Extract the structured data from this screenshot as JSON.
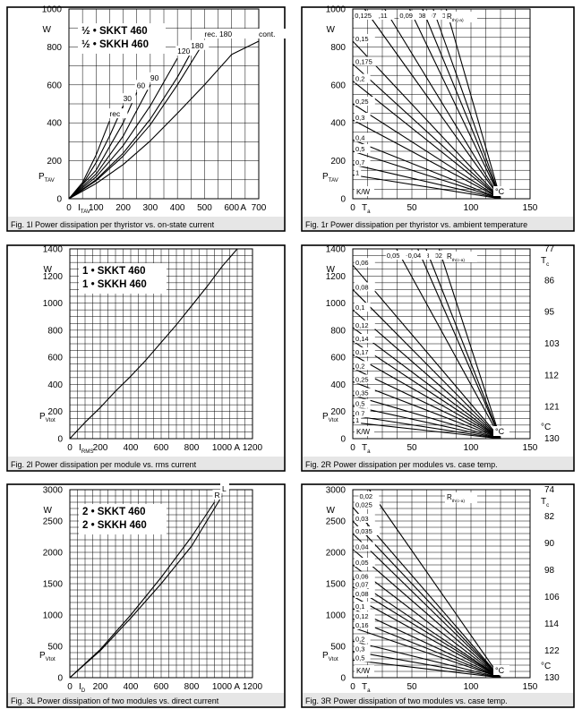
{
  "panels": [
    {
      "caption": "Fig. 1l Power dissipation per thyristor vs. on-state current",
      "device_labels": [
        "½ • SKKT 460",
        "½ • SKKH 460"
      ],
      "y_unit": "W",
      "y_symbol": "P",
      "y_subscript": "TAV",
      "x_symbol": "I",
      "x_subscript": "TAV",
      "x_unit": "A",
      "chart_data": {
        "type": "line",
        "xlim": [
          0,
          700
        ],
        "ylim": [
          0,
          1000
        ],
        "x_ticks": [
          0,
          100,
          200,
          300,
          400,
          500,
          600,
          700
        ],
        "y_ticks": [
          0,
          200,
          400,
          600,
          800,
          1000
        ],
        "grid": true,
        "series": [
          {
            "name": "rec",
            "x": [
              0,
              50,
              100,
              150
            ],
            "y": [
              0,
              85,
              230,
              410
            ]
          },
          {
            "name": "30",
            "x": [
              0,
              50,
              100,
              150,
              200
            ],
            "y": [
              0,
              75,
              190,
              330,
              490
            ]
          },
          {
            "name": "60",
            "x": [
              0,
              100,
              200,
              250
            ],
            "y": [
              0,
              150,
              400,
              560
            ]
          },
          {
            "name": "90",
            "x": [
              0,
              100,
              200,
              300
            ],
            "y": [
              0,
              130,
              330,
              600
            ]
          },
          {
            "name": "120",
            "x": [
              0,
              100,
              200,
              300,
              400
            ],
            "y": [
              0,
              115,
              280,
              490,
              740
            ]
          },
          {
            "name": "180",
            "x": [
              0,
              100,
              200,
              300,
              400,
              450
            ],
            "y": [
              0,
              100,
              240,
              420,
              640,
              770
            ]
          },
          {
            "name": "rec. 180",
            "x": [
              0,
              100,
              200,
              300,
              400,
              500
            ],
            "y": [
              0,
              95,
              225,
              390,
              600,
              830
            ]
          },
          {
            "name": "cont.",
            "x": [
              0,
              100,
              200,
              300,
              400,
              500,
              600,
              700
            ],
            "y": [
              0,
              80,
              180,
              305,
              450,
              600,
              760,
              830
            ]
          }
        ]
      }
    },
    {
      "caption": "Fig. 1r Power dissipation per thyristor vs. ambient temperature",
      "y_unit": "W",
      "y_symbol": "P",
      "y_subscript": "TAV",
      "x_symbol": "T",
      "x_subscript": "a",
      "x_unit": "°C",
      "rth_label": "R",
      "rth_subscript": "th(j-a)",
      "kw_label": "K/W",
      "chart_data": {
        "type": "line",
        "xlim": [
          0,
          150
        ],
        "ylim": [
          0,
          1000
        ],
        "x_ticks": [
          0,
          50,
          100,
          150
        ],
        "y_ticks": [
          0,
          200,
          400,
          600,
          800,
          1000
        ],
        "grid": true,
        "convergence_x": 125,
        "rth_values": [
          "0,06",
          "0,07",
          "0,08",
          "0,09",
          "0,11",
          "0,125",
          "0,15",
          "0,175",
          "0,2",
          "0,25",
          "0,3",
          "0,4",
          "0,5",
          "0,7",
          "1"
        ],
        "rth_label_top": [
          true,
          true,
          true,
          true,
          true,
          true,
          false,
          false,
          false,
          false,
          false,
          false,
          false,
          false,
          false
        ],
        "start_x": [
          79,
          68,
          59,
          48,
          27,
          10,
          0,
          0,
          0,
          0,
          0,
          0,
          0,
          0,
          0
        ],
        "start_y": [
          1000,
          1000,
          1000,
          1000,
          1000,
          1000,
          830,
          710,
          620,
          500,
          415,
          310,
          250,
          180,
          125
        ]
      }
    },
    {
      "caption": "Fig. 2l Power dissipation per module vs. rms current",
      "device_labels": [
        "1 • SKKT 460",
        "1 • SKKH 460"
      ],
      "y_unit": "W",
      "y_symbol": "P",
      "y_subscript": "Vtot",
      "x_symbol": "I",
      "x_subscript": "RMS",
      "x_unit": "A",
      "chart_data": {
        "type": "line",
        "xlim": [
          0,
          1200
        ],
        "ylim": [
          0,
          1400
        ],
        "x_ticks": [
          0,
          200,
          400,
          600,
          800,
          1000,
          1200
        ],
        "y_ticks": [
          0,
          200,
          400,
          600,
          800,
          1000,
          1200,
          1400
        ],
        "grid": true,
        "series": [
          {
            "name": "",
            "x": [
              0,
              100,
              200,
              300,
              400,
              500,
              600,
              700,
              800,
              900,
              1000,
              1100
            ],
            "y": [
              0,
              120,
              230,
              350,
              460,
              580,
              710,
              840,
              980,
              1120,
              1270,
              1400
            ]
          }
        ]
      }
    },
    {
      "caption": "Fig. 2R Power dissipation per modules vs. case temp.",
      "y_unit": "W",
      "y_symbol": "P",
      "y_subscript": "Vtot",
      "x_symbol": "T",
      "x_subscript": "a",
      "x_unit": "°C",
      "rth_label": "R",
      "rth_subscript": "th(c-a)",
      "kw_label": "K/W",
      "tc_symbol": "T",
      "tc_subscript": "c",
      "tc_unit": "°C",
      "tc_values": [
        "77",
        "86",
        "95",
        "103",
        "112",
        "121",
        "130"
      ],
      "chart_data": {
        "type": "line",
        "xlim": [
          0,
          150
        ],
        "ylim": [
          0,
          1400
        ],
        "x_ticks": [
          0,
          50,
          100,
          150
        ],
        "y_ticks": [
          0,
          200,
          400,
          600,
          800,
          1000,
          1200,
          1400
        ],
        "grid": true,
        "convergence_x": 125,
        "rth_values": [
          "0,02",
          "0,03",
          "0,04",
          "0,05",
          "0,06",
          "0,08",
          "0,1",
          "0,12",
          "0,14",
          "0,17",
          "0,2",
          "0,25",
          "0,35",
          "0,5",
          "0,7",
          "1"
        ],
        "rth_label_top": [
          true,
          true,
          true,
          true,
          false,
          false,
          false,
          false,
          false,
          false,
          false,
          false,
          false,
          false,
          false,
          false
        ],
        "start_x": [
          73,
          62,
          55,
          37,
          0,
          0,
          0,
          0,
          0,
          0,
          0,
          0,
          0,
          0,
          0,
          0
        ],
        "start_y": [
          1400,
          1400,
          1400,
          1400,
          1280,
          1100,
          950,
          820,
          720,
          620,
          520,
          420,
          320,
          240,
          170,
          120
        ]
      }
    },
    {
      "caption": "Fig. 3L Power dissipation of two modules vs. direct current",
      "device_labels": [
        "2 • SKKT 460",
        "2 • SKKH 460"
      ],
      "y_unit": "W",
      "y_symbol": "P",
      "y_subscript": "Vtot",
      "x_symbol": "I",
      "x_subscript": "D",
      "x_unit": "A",
      "chart_data": {
        "type": "line",
        "xlim": [
          0,
          1200
        ],
        "ylim": [
          0,
          3000
        ],
        "x_ticks": [
          0,
          200,
          400,
          600,
          800,
          1000,
          1200
        ],
        "y_ticks": [
          0,
          500,
          1000,
          1500,
          2000,
          2500,
          3000
        ],
        "grid": true,
        "series": [
          {
            "name": "R",
            "x": [
              0,
              200,
              400,
              600,
              800,
              950
            ],
            "y": [
              0,
              450,
              1000,
              1600,
              2250,
              2800
            ]
          },
          {
            "name": "L",
            "x": [
              0,
              200,
              400,
              600,
              800,
              1000
            ],
            "y": [
              0,
              430,
              950,
              1500,
              2100,
              2900
            ]
          }
        ]
      }
    },
    {
      "caption": "Fig. 3R Power dissipation of two modules vs. case temp.",
      "y_unit": "W",
      "y_symbol": "P",
      "y_subscript": "Vtot",
      "x_symbol": "T",
      "x_subscript": "a",
      "x_unit": "°C",
      "rth_label": "R",
      "rth_subscript": "th(c-a)",
      "kw_label": "K/W",
      "tc_symbol": "T",
      "tc_subscript": "c",
      "tc_unit": "°C",
      "tc_values": [
        "74",
        "82",
        "90",
        "98",
        "106",
        "114",
        "122",
        "130"
      ],
      "chart_data": {
        "type": "line",
        "xlim": [
          0,
          150
        ],
        "ylim": [
          0,
          3000
        ],
        "x_ticks": [
          0,
          50,
          100,
          150
        ],
        "y_ticks": [
          0,
          500,
          1000,
          1500,
          2000,
          2500,
          3000
        ],
        "grid": true,
        "convergence_x": 125,
        "rth_values": [
          "0,02",
          "0,025",
          "0,03",
          "0,035",
          "0,04",
          "0,05",
          "0,06",
          "0,07",
          "0,08",
          "0,1",
          "0,12",
          "0,16",
          "0,2",
          "0,3",
          "0,5"
        ],
        "rth_label_top": [
          true,
          false,
          false,
          false,
          false,
          false,
          false,
          false,
          false,
          false,
          false,
          false,
          false,
          false,
          false
        ],
        "start_x": [
          14,
          0,
          0,
          0,
          0,
          0,
          0,
          0,
          0,
          0,
          0,
          0,
          0,
          0,
          0
        ],
        "start_y": [
          3000,
          2720,
          2500,
          2300,
          2050,
          1800,
          1580,
          1450,
          1300,
          1100,
          940,
          800,
          580,
          420,
          280
        ]
      }
    }
  ]
}
